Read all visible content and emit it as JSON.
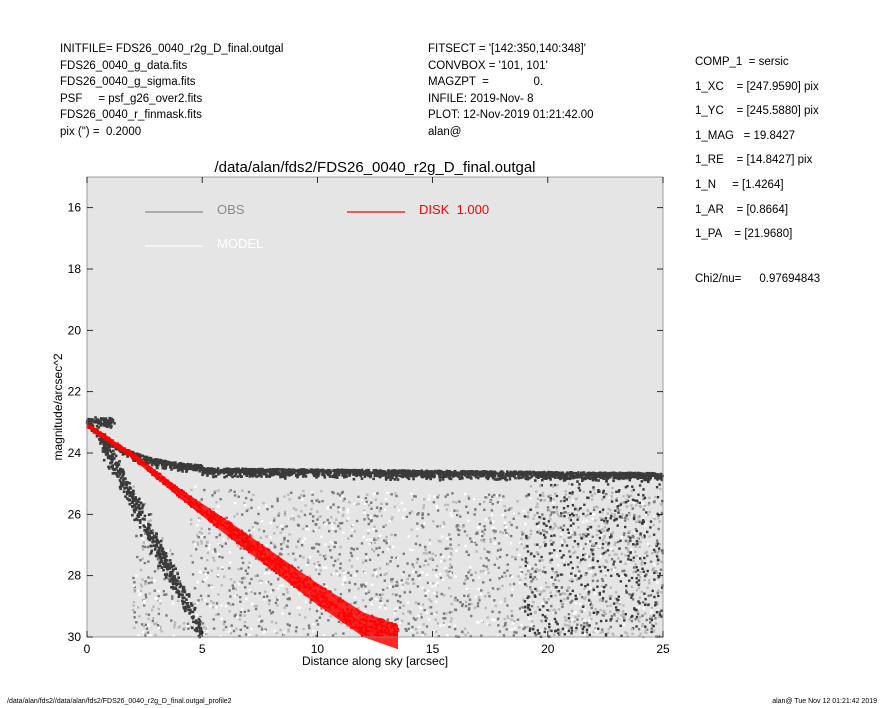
{
  "header_left": [
    "INITFILE= FDS26_0040_r2g_D_final.outgal",
    "FDS26_0040_g_data.fits",
    "FDS26_0040_g_sigma.fits",
    "PSF     = psf_g26_over2.fits",
    "FDS26_0040_r_finmask.fits",
    "pix (\") =  0.2000"
  ],
  "header_mid": [
    "FITSECT = '[142:350,140:348]'",
    "CONVBOX = '101, 101'",
    "MAGZPT  =              0.",
    "INFILE: 2019-Nov- 8",
    "PLOT: 12-Nov-2019 01:21:42.00",
    "alan@"
  ],
  "header_right": [
    "COMP_1  = sersic",
    "1_XC    = [247.9590] pix",
    "1_YC    = [245.5880] pix",
    "1_MAG   = 19.8427",
    "1_RE    = [14.8427] pix",
    "1_N     = [1.4264]",
    "1_AR    = [0.8664]",
    "1_PA    = [21.9680]"
  ],
  "chi2": {
    "label": "Chi2/nu=",
    "value": "0.97694843"
  },
  "footer_left": "/data/alan/fds2//data/alan/fds2/FDS26_0040_r2g_D_final.outgal_profile2",
  "footer_right": "alan@  Tue Nov 12 01:21:42 2019",
  "colors": {
    "plot_bg": "#e5e5e5",
    "obs": "#8a8a8a",
    "model": "#ffffff",
    "disk": "#ff0000",
    "obs_dark": "#3a3a3a",
    "obs_mid": "#7a7a7a",
    "obs_light": "#b8b8b8"
  },
  "chart_data": {
    "type": "scatter",
    "title": "/data/alan/fds2/FDS26_0040_r2g_D_final.outgal",
    "xlabel": "Distance along sky [arcsec]",
    "ylabel": "magnitude/arcsec^2",
    "xlim": [
      0,
      25
    ],
    "ylim": [
      30,
      15
    ],
    "y_inverted": true,
    "grid": false,
    "legend_placement": "top",
    "x_ticks": [
      0,
      5,
      10,
      15,
      20,
      25
    ],
    "y_ticks": [
      16,
      18,
      20,
      22,
      24,
      26,
      28,
      30
    ],
    "series": [
      {
        "name": "OBS",
        "kind": "points",
        "description_values": {
          "plateau_upper_envelope_mag": 24.6,
          "plateau_lower_spread_mag": [
            25,
            30
          ],
          "center_mag": 23.1,
          "inner_envelope": [
            [
              0,
              23.0
            ],
            [
              1,
              23.3
            ],
            [
              2,
              23.8
            ],
            [
              3,
              24.2
            ],
            [
              4,
              24.5
            ],
            [
              5,
              24.6
            ],
            [
              25,
              24.8
            ]
          ],
          "lower_edge": [
            [
              0.6,
              23.3
            ],
            [
              1.5,
              25.0
            ],
            [
              2.5,
              26.8
            ],
            [
              3.5,
              28.2
            ],
            [
              4.5,
              29.8
            ]
          ]
        }
      },
      {
        "name": "MODEL",
        "kind": "points"
      },
      {
        "name": "DISK  1.000",
        "kind": "band",
        "x": [
          0,
          2,
          4,
          6,
          8,
          10,
          12,
          13.5
        ],
        "y": [
          23.1,
          24.1,
          25.3,
          26.4,
          27.5,
          28.6,
          29.6,
          30.0
        ],
        "band_halfwidth": [
          0.05,
          0.1,
          0.15,
          0.25,
          0.3,
          0.35,
          0.4,
          0.4
        ]
      }
    ]
  }
}
